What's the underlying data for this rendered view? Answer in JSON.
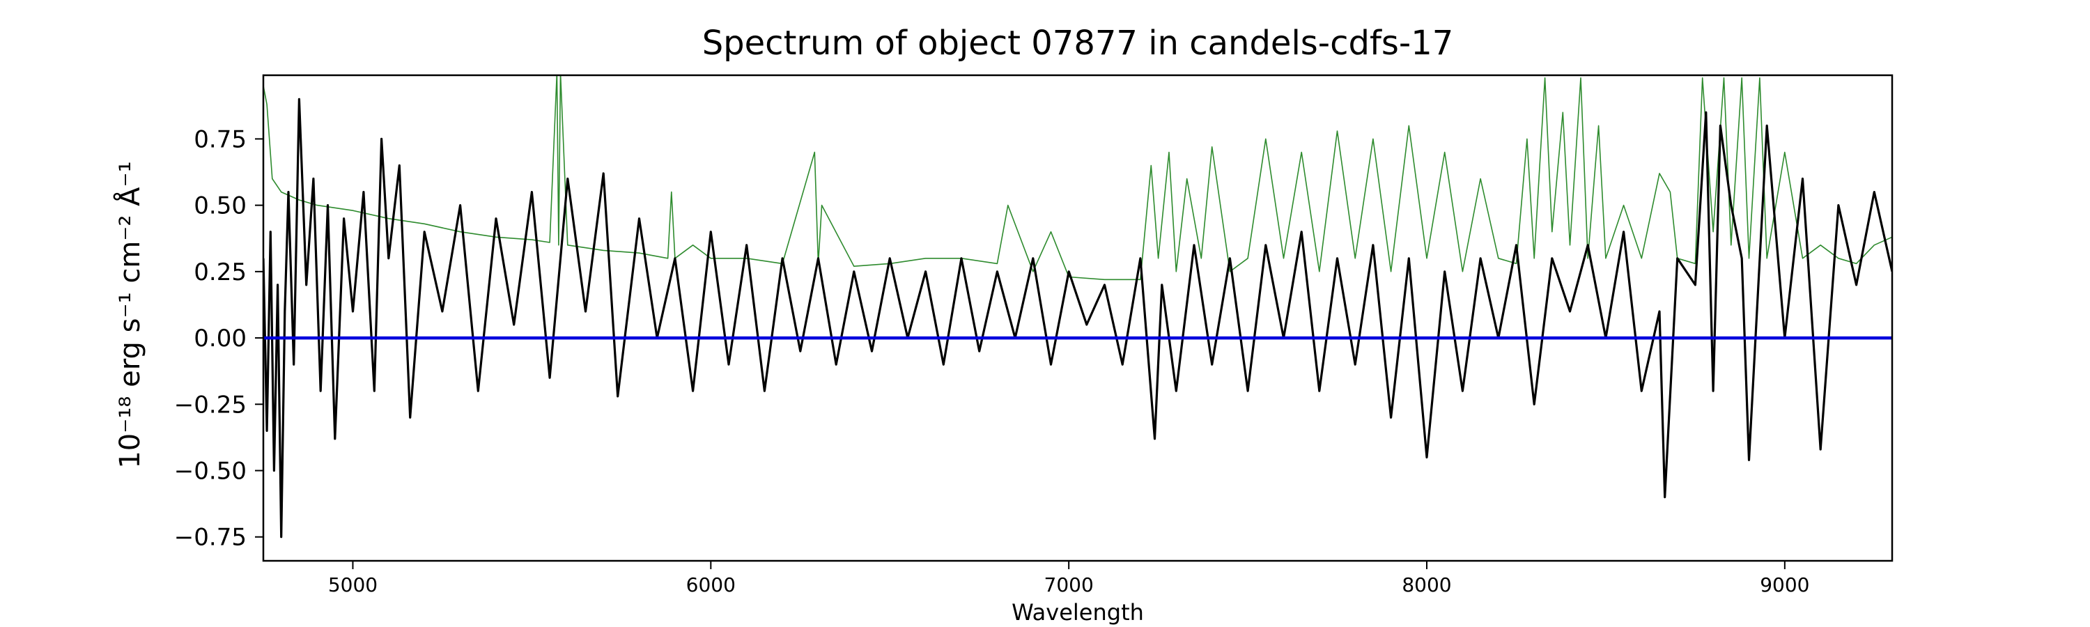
{
  "chart_data": {
    "type": "line",
    "title": "Spectrum of object 07877 in candels-cdfs-17",
    "xlabel": "Wavelength",
    "ylabel": "10⁻¹⁸ erg s⁻¹ cm⁻² Å⁻¹",
    "xlim": [
      4750,
      9300
    ],
    "ylim": [
      -0.84,
      0.99
    ],
    "xticks": [
      5000,
      6000,
      7000,
      8000,
      9000
    ],
    "xtick_labels": [
      "5000",
      "6000",
      "7000",
      "8000",
      "9000"
    ],
    "yticks": [
      -0.75,
      -0.5,
      -0.25,
      0.0,
      0.25,
      0.5,
      0.75
    ],
    "ytick_labels": [
      "−0.75",
      "−0.50",
      "−0.25",
      "0.00",
      "0.25",
      "0.50",
      "0.75"
    ],
    "grid": false,
    "series": [
      {
        "role": "flux",
        "color": "#000000",
        "x": [
          4750,
          4760,
          4770,
          4780,
          4790,
          4800,
          4810,
          4820,
          4835,
          4850,
          4870,
          4890,
          4910,
          4930,
          4950,
          4975,
          5000,
          5030,
          5060,
          5080,
          5100,
          5130,
          5160,
          5200,
          5250,
          5300,
          5350,
          5400,
          5450,
          5500,
          5550,
          5600,
          5650,
          5700,
          5740,
          5800,
          5850,
          5900,
          5950,
          6000,
          6050,
          6100,
          6150,
          6200,
          6250,
          6300,
          6350,
          6400,
          6450,
          6500,
          6550,
          6600,
          6650,
          6700,
          6750,
          6800,
          6850,
          6900,
          6950,
          7000,
          7050,
          7100,
          7150,
          7200,
          7240,
          7260,
          7300,
          7350,
          7400,
          7450,
          7500,
          7550,
          7600,
          7650,
          7700,
          7750,
          7800,
          7850,
          7900,
          7950,
          8000,
          8050,
          8100,
          8150,
          8200,
          8250,
          8300,
          8350,
          8400,
          8450,
          8500,
          8550,
          8600,
          8650,
          8665,
          8700,
          8750,
          8780,
          8800,
          8820,
          8850,
          8880,
          8900,
          8950,
          9000,
          9050,
          9100,
          9150,
          9200,
          9250,
          9300
        ],
        "y": [
          0.3,
          -0.35,
          0.4,
          -0.5,
          0.2,
          -0.75,
          0.1,
          0.55,
          -0.1,
          0.9,
          0.2,
          0.6,
          -0.2,
          0.5,
          -0.38,
          0.45,
          0.1,
          0.55,
          -0.2,
          0.75,
          0.3,
          0.65,
          -0.3,
          0.4,
          0.1,
          0.5,
          -0.2,
          0.45,
          0.05,
          0.55,
          -0.15,
          0.6,
          0.1,
          0.62,
          -0.22,
          0.45,
          0.0,
          0.3,
          -0.2,
          0.4,
          -0.1,
          0.35,
          -0.2,
          0.3,
          -0.05,
          0.3,
          -0.1,
          0.25,
          -0.05,
          0.3,
          0.0,
          0.25,
          -0.1,
          0.3,
          -0.05,
          0.25,
          0.0,
          0.3,
          -0.1,
          0.25,
          0.05,
          0.2,
          -0.1,
          0.3,
          -0.38,
          0.2,
          -0.2,
          0.35,
          -0.1,
          0.3,
          -0.2,
          0.35,
          0.0,
          0.4,
          -0.2,
          0.3,
          -0.1,
          0.35,
          -0.3,
          0.3,
          -0.45,
          0.25,
          -0.2,
          0.3,
          0.0,
          0.35,
          -0.25,
          0.3,
          0.1,
          0.35,
          0.0,
          0.4,
          -0.2,
          0.1,
          -0.6,
          0.3,
          0.2,
          0.85,
          -0.2,
          0.8,
          0.5,
          0.3,
          -0.46,
          0.8,
          0.0,
          0.6,
          -0.42,
          0.5,
          0.2,
          0.55,
          0.25
        ]
      },
      {
        "role": "noise",
        "color": "#2e8b2e",
        "x": [
          4750,
          4760,
          4775,
          4800,
          4850,
          4900,
          5000,
          5100,
          5200,
          5300,
          5400,
          5500,
          5550,
          5570,
          5575,
          5580,
          5600,
          5700,
          5800,
          5880,
          5890,
          5900,
          5950,
          6000,
          6100,
          6200,
          6290,
          6300,
          6310,
          6400,
          6500,
          6600,
          6700,
          6800,
          6830,
          6900,
          6950,
          7000,
          7100,
          7200,
          7230,
          7250,
          7280,
          7300,
          7330,
          7370,
          7400,
          7450,
          7500,
          7550,
          7600,
          7650,
          7700,
          7750,
          7800,
          7850,
          7900,
          7950,
          8000,
          8050,
          8100,
          8150,
          8200,
          8250,
          8280,
          8300,
          8330,
          8350,
          8380,
          8400,
          8430,
          8450,
          8480,
          8500,
          8550,
          8600,
          8650,
          8680,
          8700,
          8750,
          8770,
          8800,
          8830,
          8850,
          8880,
          8900,
          8930,
          8950,
          9000,
          9050,
          9100,
          9150,
          9200,
          9250,
          9300
        ],
        "y": [
          0.95,
          0.88,
          0.6,
          0.55,
          0.52,
          0.5,
          0.48,
          0.45,
          0.43,
          0.4,
          0.38,
          0.37,
          0.36,
          1.0,
          0.35,
          1.0,
          0.35,
          0.33,
          0.32,
          0.3,
          0.55,
          0.3,
          0.35,
          0.3,
          0.3,
          0.28,
          0.7,
          0.28,
          0.5,
          0.27,
          0.28,
          0.3,
          0.3,
          0.28,
          0.5,
          0.25,
          0.4,
          0.23,
          0.22,
          0.22,
          0.65,
          0.3,
          0.7,
          0.25,
          0.6,
          0.3,
          0.72,
          0.25,
          0.3,
          0.75,
          0.3,
          0.7,
          0.25,
          0.78,
          0.3,
          0.75,
          0.25,
          0.8,
          0.3,
          0.7,
          0.25,
          0.6,
          0.3,
          0.28,
          0.75,
          0.3,
          0.98,
          0.4,
          0.85,
          0.35,
          0.98,
          0.3,
          0.8,
          0.3,
          0.5,
          0.3,
          0.62,
          0.55,
          0.3,
          0.28,
          0.98,
          0.4,
          0.98,
          0.35,
          0.98,
          0.3,
          0.98,
          0.3,
          0.7,
          0.3,
          0.35,
          0.3,
          0.28,
          0.35,
          0.38
        ]
      },
      {
        "role": "zero",
        "color": "#0000dd",
        "x": [
          4750,
          9300
        ],
        "y": [
          0.0,
          0.0
        ]
      }
    ]
  }
}
